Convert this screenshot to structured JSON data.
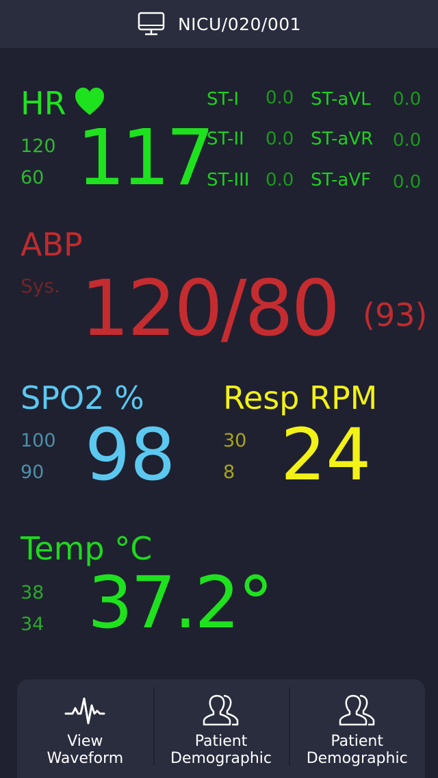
{
  "header": {
    "title": "NICU/020/001",
    "icon": "monitor-icon"
  },
  "hr": {
    "label": "HR",
    "high": "120",
    "low": "60",
    "value": "117",
    "st": [
      {
        "label": "ST-I",
        "value": "0.0"
      },
      {
        "label": "ST-aVL",
        "value": "0.0"
      },
      {
        "label": "ST-II",
        "value": "0.0"
      },
      {
        "label": "ST-aVR",
        "value": "0.0"
      },
      {
        "label": "ST-III",
        "value": "0.0"
      },
      {
        "label": "ST-aVF",
        "value": "0.0"
      }
    ]
  },
  "abp": {
    "label": "ABP",
    "sub": "Sys.",
    "value": "120/80",
    "mean": "(93)"
  },
  "spo2": {
    "label": "SPO2 %",
    "high": "100",
    "low": "90",
    "value": "98"
  },
  "resp": {
    "label": "Resp RPM",
    "high": "30",
    "low": "8",
    "value": "24"
  },
  "temp": {
    "label": "Temp °C",
    "high": "38",
    "low": "34",
    "value": "37.2°"
  },
  "nav": [
    {
      "label": "View\nWaveform",
      "icon": "waveform-icon"
    },
    {
      "label": "Patient\nDemographic",
      "icon": "users-icon"
    },
    {
      "label": "Patient\nDemographic",
      "icon": "users-icon"
    }
  ]
}
